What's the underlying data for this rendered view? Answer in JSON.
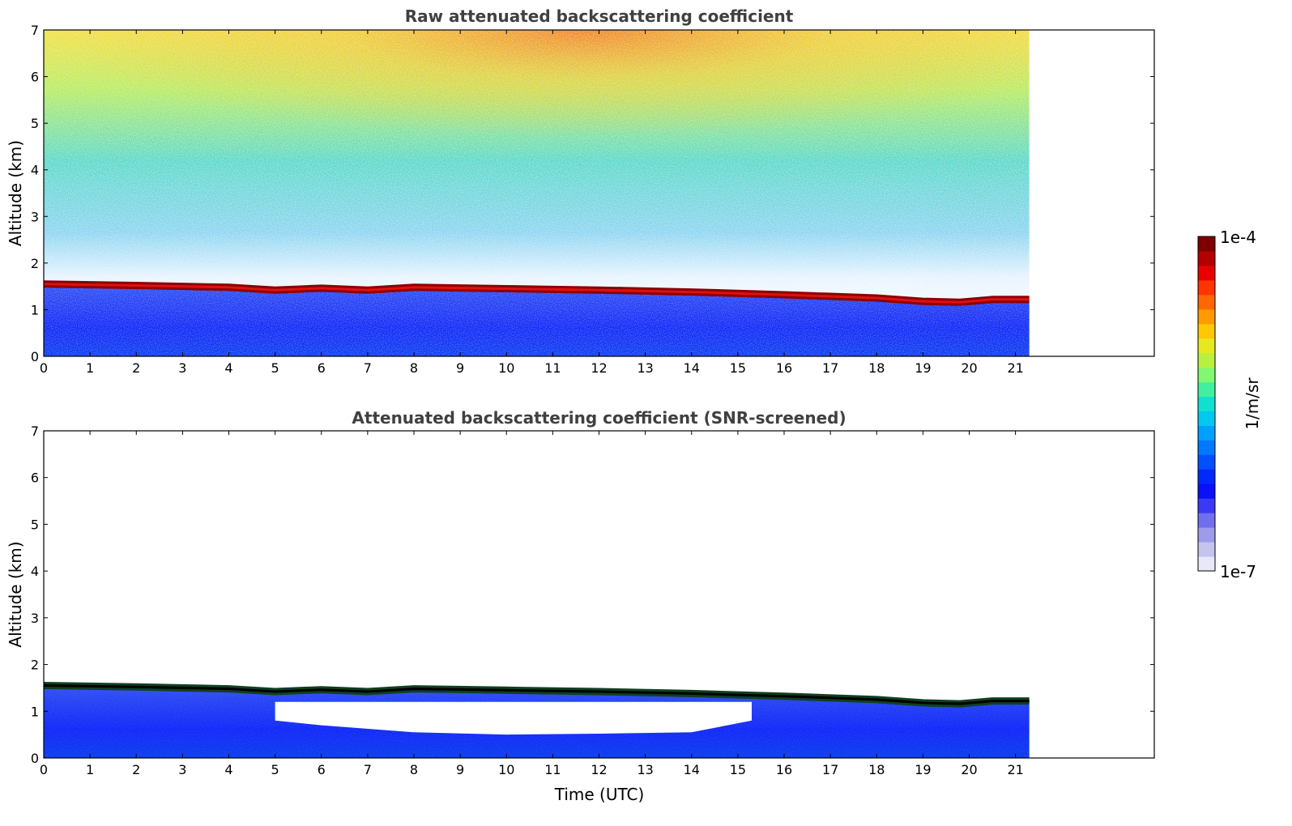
{
  "chart_data": [
    {
      "type": "heatmap",
      "title": "Raw attenuated backscattering coefficient",
      "xlabel": "",
      "ylabel": "Altitude (km)",
      "xlim": [
        0,
        24
      ],
      "ylim": [
        0,
        7
      ],
      "data_end_x": 21.3,
      "xticks": [
        "0",
        "1",
        "2",
        "3",
        "4",
        "5",
        "6",
        "7",
        "8",
        "9",
        "10",
        "11",
        "12",
        "13",
        "14",
        "15",
        "16",
        "17",
        "18",
        "19",
        "20",
        "21"
      ],
      "yticks": [
        "0",
        "1",
        "2",
        "3",
        "4",
        "5",
        "6",
        "7"
      ],
      "layer_top_km": {
        "x": [
          0,
          2,
          4,
          5,
          6,
          7,
          8,
          10,
          12,
          14,
          16,
          18,
          19,
          19.8,
          20.5,
          21.3
        ],
        "y": [
          1.55,
          1.52,
          1.48,
          1.42,
          1.46,
          1.42,
          1.48,
          1.45,
          1.42,
          1.38,
          1.32,
          1.25,
          1.18,
          1.16,
          1.22,
          1.22
        ]
      }
    },
    {
      "type": "heatmap",
      "title": "Attenuated backscattering coefficient (SNR-screened)",
      "xlabel": "Time (UTC)",
      "ylabel": "Altitude (km)",
      "xlim": [
        0,
        24
      ],
      "ylim": [
        0,
        7
      ],
      "data_end_x": 21.3,
      "xticks": [
        "0",
        "1",
        "2",
        "3",
        "4",
        "5",
        "6",
        "7",
        "8",
        "9",
        "10",
        "11",
        "12",
        "13",
        "14",
        "15",
        "16",
        "17",
        "18",
        "19",
        "20",
        "21"
      ],
      "yticks": [
        "0",
        "1",
        "2",
        "3",
        "4",
        "5",
        "6",
        "7"
      ],
      "layer_top_km": {
        "x": [
          0,
          2,
          4,
          5,
          6,
          7,
          8,
          10,
          12,
          14,
          16,
          18,
          19,
          19.8,
          20.5,
          21.3
        ],
        "y": [
          1.55,
          1.52,
          1.48,
          1.42,
          1.46,
          1.42,
          1.48,
          1.45,
          1.42,
          1.38,
          1.32,
          1.25,
          1.18,
          1.16,
          1.22,
          1.22
        ]
      },
      "screened_gap_km": {
        "x": [
          5,
          6,
          8,
          10,
          12,
          14,
          15.3
        ],
        "top": [
          1.2,
          1.2,
          1.2,
          1.2,
          1.2,
          1.2,
          1.2
        ],
        "bottom": [
          0.8,
          0.7,
          0.55,
          0.5,
          0.52,
          0.55,
          0.8
        ]
      }
    }
  ],
  "colorbar": {
    "max_label": "1e-4",
    "min_label": "1e-7",
    "label": "1/m/sr",
    "colors": [
      "#e8e8f8",
      "#c4c4ee",
      "#9c9cea",
      "#7070ee",
      "#3a3af6",
      "#0a10f8",
      "#0028ff",
      "#0050ff",
      "#0078ff",
      "#00a0ff",
      "#00c8f0",
      "#10e0d0",
      "#40f0a0",
      "#80f870",
      "#b8f040",
      "#e8e820",
      "#ffc800",
      "#ff9a00",
      "#ff6800",
      "#ff3400",
      "#e80000",
      "#b40000",
      "#7e0000"
    ]
  }
}
